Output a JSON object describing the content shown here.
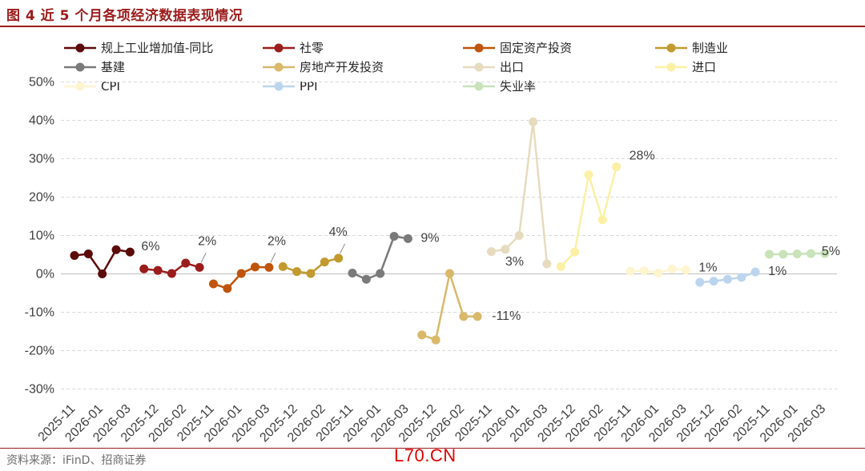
{
  "header": {
    "title": "图 4  近 5 个月各项经济数据表现情况"
  },
  "footer": {
    "source": "资料来源：iFinD、招商证券",
    "watermark": "L70.CN"
  },
  "chart_data": {
    "type": "line",
    "title": "图 4  近 5 个月各项经济数据表现情况",
    "xlabel": "",
    "ylabel": "",
    "ylim": [
      -30,
      50
    ],
    "yticks": [
      -30,
      -20,
      -10,
      0,
      10,
      20,
      30,
      40,
      50
    ],
    "ytick_labels": [
      "-30%",
      "-20%",
      "-10%",
      "0%",
      "10%",
      "20%",
      "30%",
      "40%",
      "50%"
    ],
    "grid": "horizontal dashed",
    "legend_position": "top",
    "x_tick_labels": [
      "2025-11",
      "2026-01",
      "2026-03",
      "2025-12",
      "2026-02",
      "2025-11",
      "2026-01",
      "2026-03",
      "2025-12",
      "2026-02",
      "2025-11",
      "2026-01",
      "2026-03",
      "2025-12",
      "2026-02",
      "2025-11",
      "2026-01",
      "2026-03",
      "2025-12",
      "2026-02",
      "2025-11",
      "2026-01",
      "2026-03",
      "2025-12",
      "2026-02",
      "2025-11",
      "2026-01",
      "2026-03"
    ],
    "series": [
      {
        "name": "规上工业增加值-同比",
        "color": "#5c0a0a",
        "x": [
          "2025-11",
          "2025-12",
          "2026-01",
          "2026-02",
          "2026-03"
        ],
        "values": [
          4.8,
          5.2,
          0.0,
          6.3,
          5.7
        ],
        "label": "6%"
      },
      {
        "name": "社零",
        "color": "#9b1c1c",
        "x": [
          "2025-11",
          "2025-12",
          "2026-01",
          "2026-02",
          "2026-03"
        ],
        "values": [
          1.3,
          0.9,
          0.1,
          2.8,
          1.7
        ],
        "label": "2%"
      },
      {
        "name": "固定资产投资",
        "color": "#c0540c",
        "x": [
          "2025-11",
          "2025-12",
          "2026-01",
          "2026-02",
          "2026-03"
        ],
        "values": [
          -2.6,
          -3.8,
          0.1,
          1.8,
          1.7
        ],
        "label": "2%"
      },
      {
        "name": "制造业",
        "color": "#c29a2e",
        "x": [
          "2025-11",
          "2025-12",
          "2026-01",
          "2026-02",
          "2026-03"
        ],
        "values": [
          1.9,
          0.6,
          0.1,
          3.1,
          4.1
        ],
        "label": "4%"
      },
      {
        "name": "基建",
        "color": "#7a7a7a",
        "x": [
          "2025-11",
          "2025-12",
          "2026-01",
          "2026-02",
          "2026-03"
        ],
        "values": [
          0.2,
          -1.4,
          0.1,
          9.8,
          9.2
        ],
        "label": "9%"
      },
      {
        "name": "房地产开发投资",
        "color": "#d9b86a",
        "x": [
          "2025-11",
          "2025-12",
          "2026-01",
          "2026-02",
          "2026-03"
        ],
        "values": [
          -15.9,
          -17.2,
          0.1,
          -11.1,
          -11.1
        ],
        "label": "-11%"
      },
      {
        "name": "出口",
        "color": "#e6dbbe",
        "x": [
          "2025-11",
          "2025-12",
          "2026-01",
          "2026-02",
          "2026-03"
        ],
        "values": [
          5.8,
          6.4,
          10.0,
          39.6,
          2.6
        ],
        "label": "3%"
      },
      {
        "name": "进口",
        "color": "#fbf0a4",
        "x": [
          "2025-11",
          "2025-12",
          "2026-01",
          "2026-02",
          "2026-03"
        ],
        "values": [
          1.9,
          5.7,
          25.8,
          14.1,
          27.9
        ],
        "label": "28%"
      },
      {
        "name": "CPI",
        "color": "#fdf5cf",
        "x": [
          "2025-11",
          "2025-12",
          "2026-01",
          "2026-02",
          "2026-03"
        ],
        "values": [
          0.7,
          0.8,
          0.2,
          1.3,
          1.0
        ],
        "label": "1%"
      },
      {
        "name": "PPI",
        "color": "#bcd5ee",
        "x": [
          "2025-11",
          "2025-12",
          "2026-01",
          "2026-02",
          "2026-03"
        ],
        "values": [
          -2.2,
          -1.9,
          -1.4,
          -0.9,
          0.5
        ],
        "label": "1%"
      },
      {
        "name": "失业率",
        "color": "#c8e3b9",
        "x": [
          "2025-11",
          "2025-12",
          "2026-01",
          "2026-02",
          "2026-03"
        ],
        "values": [
          5.1,
          5.1,
          5.2,
          5.3,
          5.3
        ],
        "label": "5%"
      }
    ]
  }
}
